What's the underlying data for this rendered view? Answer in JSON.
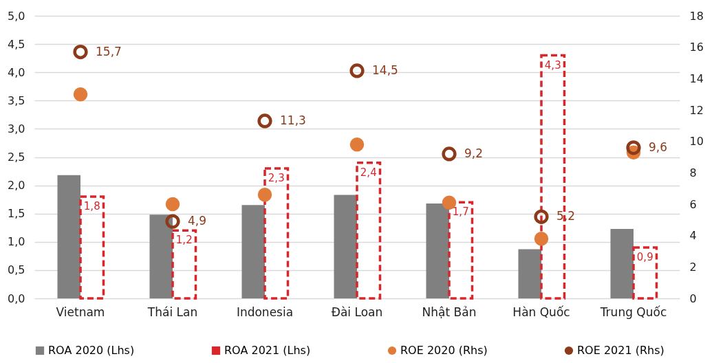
{
  "chart_data": {
    "type": "bar",
    "categories": [
      "Vietnam",
      "Thái Lan",
      "Indonesia",
      "Đài Loan",
      "Nhật Bản",
      "Hàn Quốc",
      "Trung Quốc"
    ],
    "series": [
      {
        "name": "ROA 2020 (Lhs)",
        "color": "#808080",
        "values": [
          2.18,
          1.48,
          1.65,
          1.83,
          1.68,
          0.87,
          1.23
        ]
      },
      {
        "name": "ROA 2021 (Lhs)",
        "color": "#d9262b",
        "line_style": "dashed",
        "values": [
          1.8,
          1.2,
          2.3,
          2.4,
          1.7,
          4.3,
          0.9
        ],
        "value_labels": [
          "1,8",
          "1,2",
          "2,3",
          "2,4",
          "1,7",
          "4,3",
          "0,9"
        ]
      },
      {
        "name": "ROE 2020 (Rhs)",
        "type": "scatter",
        "axis": "y2",
        "color": "#e07b39",
        "values": [
          13.0,
          6.0,
          6.6,
          9.8,
          6.1,
          3.8,
          9.3
        ]
      },
      {
        "name": "ROE 2021 (Rhs)",
        "type": "scatter",
        "axis": "y2",
        "color": "#8b3a1a",
        "values": [
          15.7,
          4.9,
          11.3,
          14.5,
          9.2,
          5.2,
          9.6
        ],
        "value_labels": [
          "15,7",
          "4,9",
          "11,3",
          "14,5",
          "9,2",
          "5,2",
          "9,6"
        ]
      }
    ],
    "ylim": [
      0,
      5
    ],
    "yticks": [
      {
        "value": 0,
        "label": "0,0"
      },
      {
        "value": 0.5,
        "label": "0,5"
      },
      {
        "value": 1,
        "label": "1,0"
      },
      {
        "value": 1.5,
        "label": "1,5"
      },
      {
        "value": 2,
        "label": "2,0"
      },
      {
        "value": 2.5,
        "label": "2,5"
      },
      {
        "value": 3,
        "label": "3,0"
      },
      {
        "value": 3.5,
        "label": "3,5"
      },
      {
        "value": 4,
        "label": "4,0"
      },
      {
        "value": 4.5,
        "label": "4,5"
      },
      {
        "value": 5,
        "label": "5,0"
      }
    ],
    "y2lim": [
      0,
      18
    ],
    "y2ticks": [
      0,
      2,
      4,
      6,
      8,
      10,
      12,
      14,
      16,
      18
    ],
    "grid": "y",
    "legend": "bottom",
    "marker": "circle"
  }
}
